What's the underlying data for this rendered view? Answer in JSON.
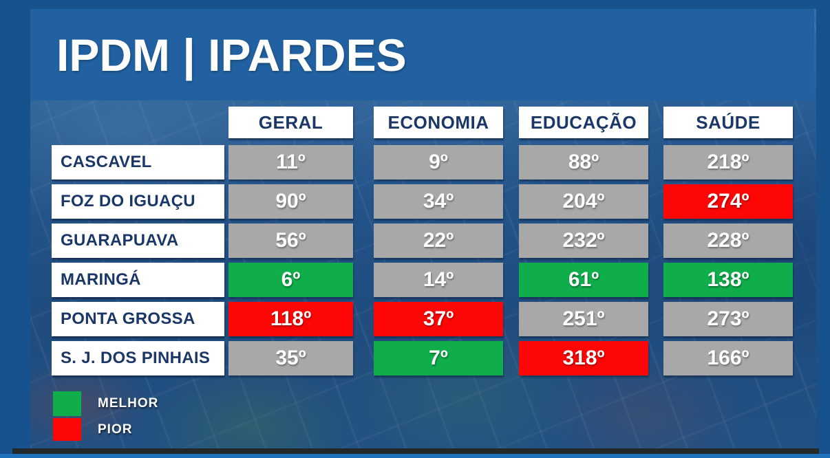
{
  "chart_data": {
    "type": "table",
    "title": "IPDM | IPARDES",
    "columns": [
      "GERAL",
      "ECONOMIA",
      "EDUCAÇÃO",
      "SAÚDE"
    ],
    "rows": [
      {
        "label": "CASCAVEL",
        "cells": [
          {
            "text": "11º",
            "status": "normal"
          },
          {
            "text": "9º",
            "status": "normal"
          },
          {
            "text": "88º",
            "status": "normal"
          },
          {
            "text": "218º",
            "status": "normal"
          }
        ]
      },
      {
        "label": "FOZ DO IGUAÇU",
        "cells": [
          {
            "text": "90º",
            "status": "normal"
          },
          {
            "text": "34º",
            "status": "normal"
          },
          {
            "text": "204º",
            "status": "normal"
          },
          {
            "text": "274º",
            "status": "worst"
          }
        ]
      },
      {
        "label": "GUARAPUAVA",
        "cells": [
          {
            "text": "56º",
            "status": "normal"
          },
          {
            "text": "22º",
            "status": "normal"
          },
          {
            "text": "232º",
            "status": "normal"
          },
          {
            "text": "228º",
            "status": "normal"
          }
        ]
      },
      {
        "label": "MARINGÁ",
        "cells": [
          {
            "text": "6º",
            "status": "best"
          },
          {
            "text": "14º",
            "status": "normal"
          },
          {
            "text": "61º",
            "status": "best"
          },
          {
            "text": "138º",
            "status": "best"
          }
        ]
      },
      {
        "label": "PONTA GROSSA",
        "cells": [
          {
            "text": "118º",
            "status": "worst"
          },
          {
            "text": "37º",
            "status": "worst"
          },
          {
            "text": "251º",
            "status": "normal"
          },
          {
            "text": "273º",
            "status": "normal"
          }
        ]
      },
      {
        "label": "S. J. DOS PINHAIS",
        "cells": [
          {
            "text": "35º",
            "status": "normal"
          },
          {
            "text": "7º",
            "status": "best"
          },
          {
            "text": "318º",
            "status": "worst"
          },
          {
            "text": "166º",
            "status": "normal"
          }
        ]
      }
    ],
    "legend": [
      {
        "label": "MELHOR",
        "meaning": "best",
        "color": "#00b050"
      },
      {
        "label": "PIOR",
        "meaning": "worst",
        "color": "#ff0000"
      }
    ]
  },
  "colors": {
    "frame": "#17528f",
    "band": "#2161a1",
    "photoBase": "#26598f",
    "navy": "#1b3768",
    "normal": "#a8a8a8",
    "best": "#0fae4b",
    "worst": "#fe0606",
    "darkStrip": "#23282b",
    "bottomBar": "#2071bb"
  }
}
